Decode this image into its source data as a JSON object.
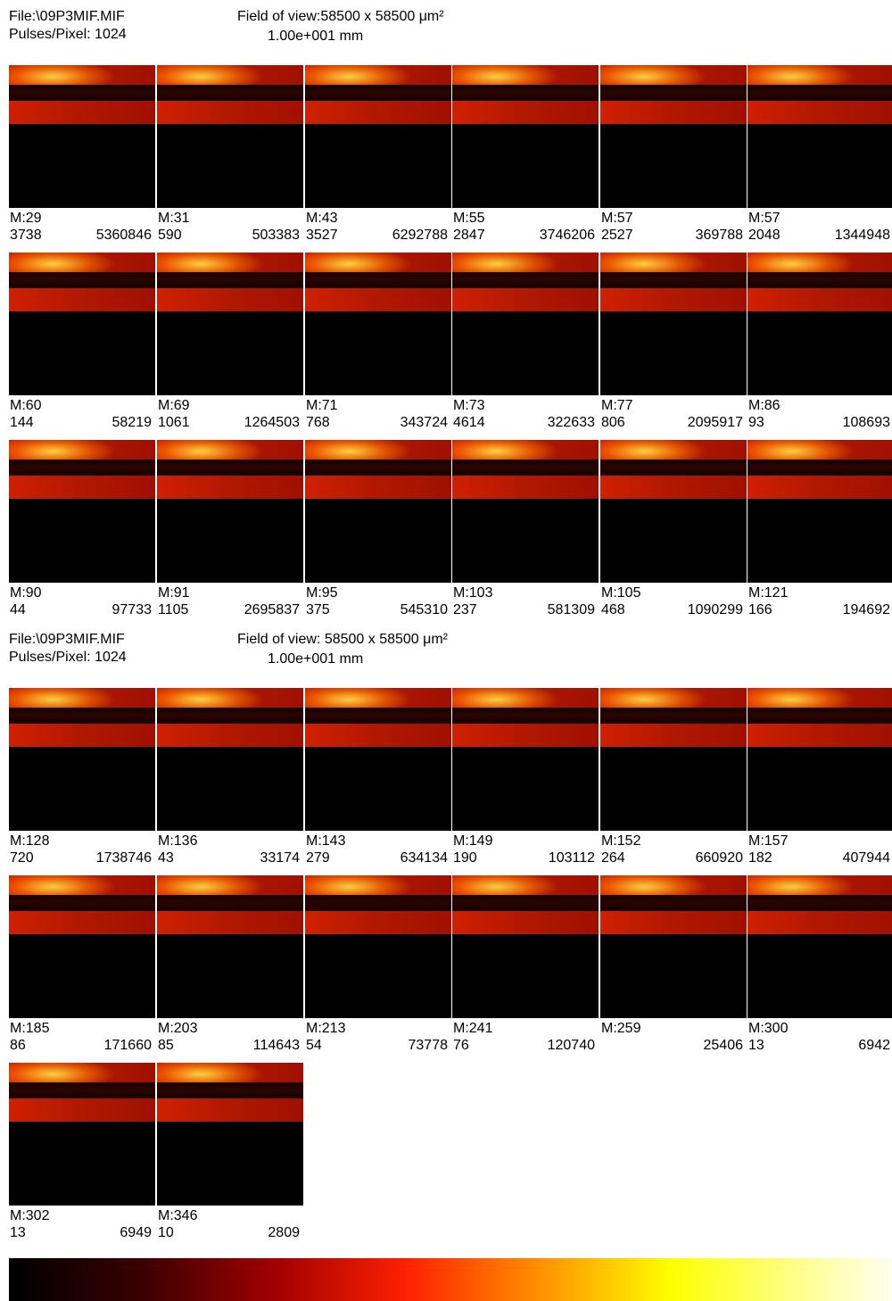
{
  "sections": [
    {
      "file": "File:\\09P3MIF.MIF",
      "pulses": "Pulses/Pixel: 1024",
      "field": "Field of view:58500 x 58500 μm²",
      "scale": "1.00e+001 mm",
      "panels": [
        {
          "mass": "M:29",
          "min": 3738,
          "max": 5360846
        },
        {
          "mass": "M:31",
          "min": 590,
          "max": 503383
        },
        {
          "mass": "M:43",
          "min": 3527,
          "max": 6292788
        },
        {
          "mass": "M:55",
          "min": 2847,
          "max": 3746206
        },
        {
          "mass": "M:57",
          "min": 2527,
          "max": 369788
        },
        {
          "mass": "M:57",
          "min": 2048,
          "max": 1344948
        },
        {
          "mass": "M:60",
          "min": 144,
          "max": 58219
        },
        {
          "mass": "M:69",
          "min": 1061,
          "max": 1264503
        },
        {
          "mass": "M:71",
          "min": 768,
          "max": 343724
        },
        {
          "mass": "M:73",
          "min": 4614,
          "max": 322633
        },
        {
          "mass": "M:77",
          "min": 806,
          "max": 2095917
        },
        {
          "mass": "M:86",
          "min": 93,
          "max": 108693
        },
        {
          "mass": "M:90",
          "min": 44,
          "max": 97733
        },
        {
          "mass": "M:91",
          "min": 1105,
          "max": 2695837
        },
        {
          "mass": "M:95",
          "min": 375,
          "max": 545310
        },
        {
          "mass": "M:103",
          "min": 237,
          "max": 581309
        },
        {
          "mass": "M:105",
          "min": 468,
          "max": 1090299
        },
        {
          "mass": "M:121",
          "min": 166,
          "max": 194692
        }
      ]
    },
    {
      "file": "File:\\09P3MIF.MIF",
      "pulses": "Pulses/Pixel: 1024",
      "field": "Field of view: 58500 x 58500 μm²",
      "scale": "1.00e+001 mm",
      "panels": [
        {
          "mass": "M:128",
          "min": 720,
          "max": 1738746
        },
        {
          "mass": "M:136",
          "min": 43,
          "max": 33174
        },
        {
          "mass": "M:143",
          "min": 279,
          "max": 634134
        },
        {
          "mass": "M:149",
          "min": 190,
          "max": 103112
        },
        {
          "mass": "M:152",
          "min": 264,
          "max": 660920
        },
        {
          "mass": "M:157",
          "min": 182,
          "max": 407944
        },
        {
          "mass": "M:185",
          "min": 86,
          "max": 171660
        },
        {
          "mass": "M:203",
          "min": 85,
          "max": 114643
        },
        {
          "mass": "M:213",
          "min": 54,
          "max": 73778
        },
        {
          "mass": "M:241",
          "min": 76,
          "max": 120740
        },
        {
          "mass": "M:259",
          "min": null,
          "max": 25406
        },
        {
          "mass": "M:300",
          "min": 13,
          "max": 6942
        },
        {
          "mass": "M:302",
          "min": 13,
          "max": 6949
        },
        {
          "mass": "M:346",
          "min": 10,
          "max": 2809
        }
      ]
    }
  ]
}
